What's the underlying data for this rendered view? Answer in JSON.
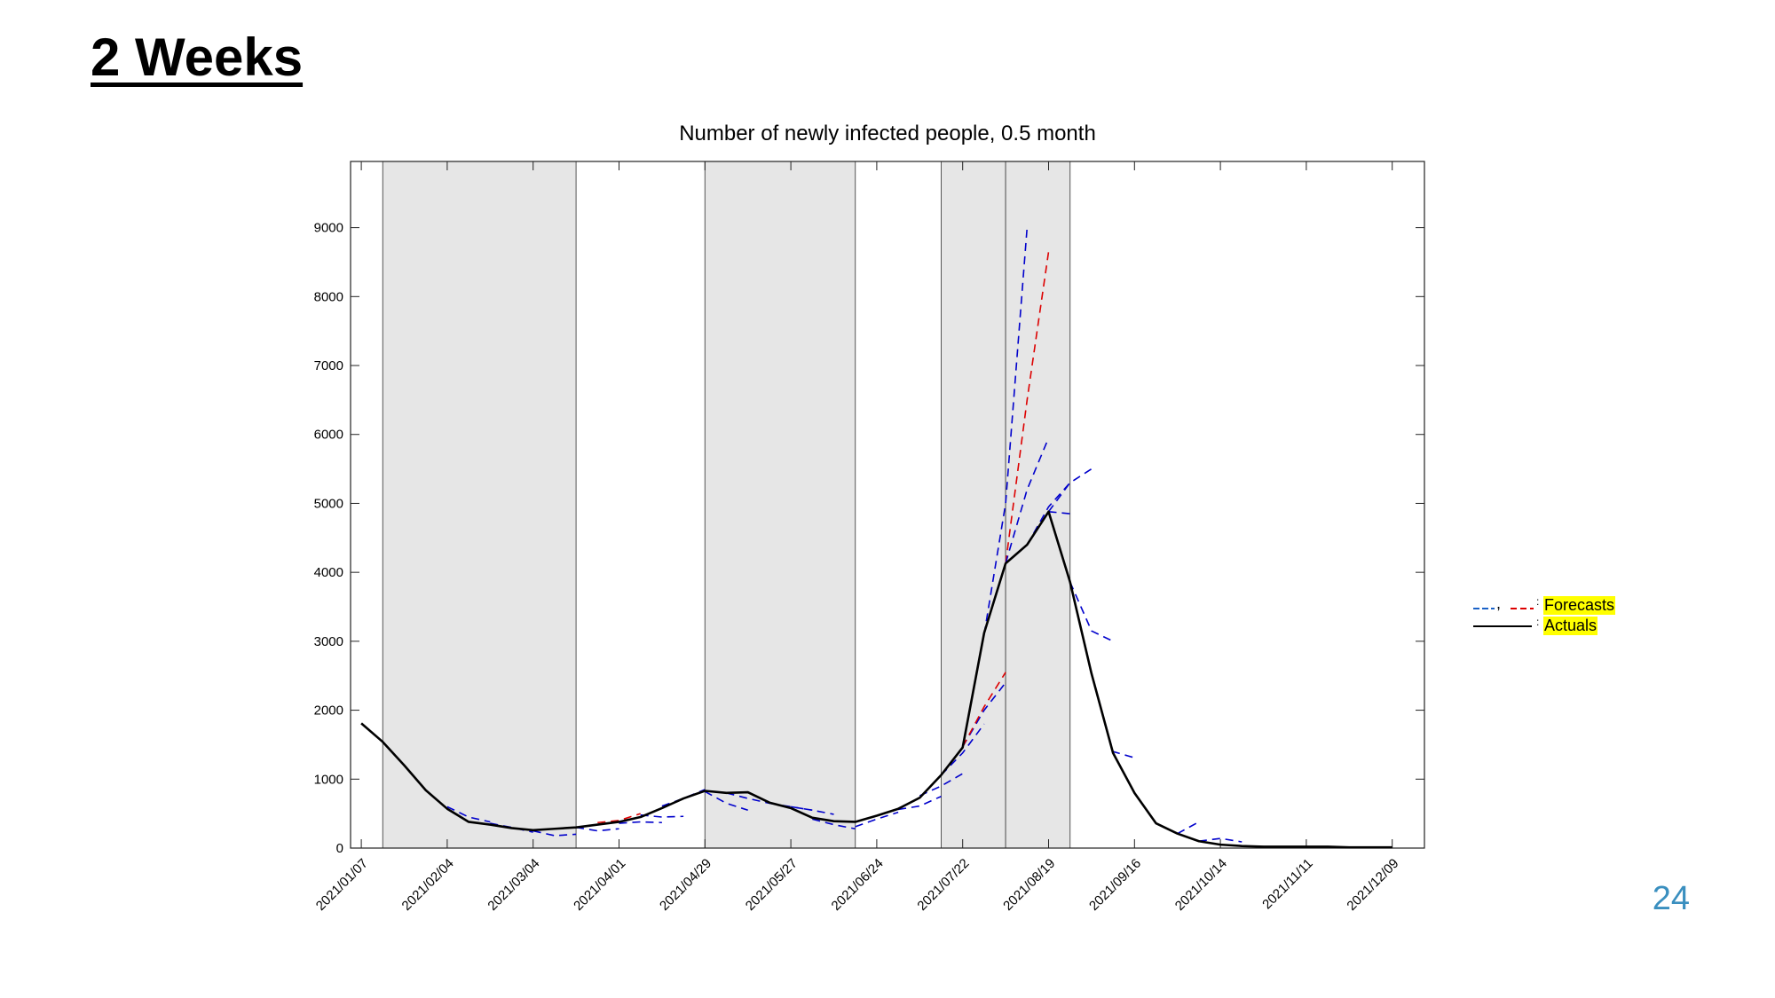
{
  "slide": {
    "title": "2 Weeks",
    "page_number": "24"
  },
  "chart_data": {
    "type": "line",
    "title": "Number of newly infected people, 0.5 month",
    "xlabel": "",
    "ylabel": "",
    "ylim": [
      0,
      9960
    ],
    "y_ticks": [
      0,
      1000,
      2000,
      3000,
      4000,
      5000,
      6000,
      7000,
      8000,
      9000
    ],
    "x_tick_labels": [
      "2021/01/07",
      "2021/02/04",
      "2021/03/04",
      "2021/04/01",
      "2021/04/29",
      "2021/05/27",
      "2021/06/24",
      "2021/07/22",
      "2021/08/19",
      "2021/09/16",
      "2021/10/14",
      "2021/11/11",
      "2021/12/09"
    ],
    "x_unit": "week",
    "x_range": [
      -0.5,
      49.5
    ],
    "shaded_periods": [
      [
        1,
        10
      ],
      [
        16,
        23
      ],
      [
        27,
        30
      ],
      [
        30,
        33
      ]
    ],
    "colors": {
      "actuals": "#000000",
      "forecast_blue": "#0000cc",
      "forecast_red": "#dd0000",
      "shade": "#e6e6e6",
      "legend_highlight": "#ffff00"
    },
    "series": [
      {
        "name": "Actuals",
        "style": "solid",
        "color": "#000000",
        "x": [
          0,
          1,
          2,
          3,
          4,
          5,
          6,
          7,
          8,
          9,
          10,
          11,
          12,
          13,
          14,
          15,
          16,
          17,
          18,
          19,
          20,
          21,
          22,
          23,
          24,
          25,
          26,
          27,
          28,
          29,
          30,
          31,
          32,
          33,
          34,
          35,
          36,
          37,
          38,
          39,
          40,
          41,
          42,
          43,
          44,
          45,
          46,
          47,
          48
        ],
        "y": [
          1810,
          1540,
          1200,
          840,
          570,
          380,
          340,
          290,
          260,
          280,
          300,
          340,
          380,
          450,
          580,
          720,
          830,
          800,
          810,
          660,
          580,
          440,
          390,
          380,
          470,
          570,
          730,
          1060,
          1460,
          3120,
          4130,
          4400,
          4880,
          3860,
          2530,
          1380,
          800,
          360,
          210,
          100,
          50,
          30,
          20,
          20,
          20,
          20,
          10,
          10,
          10
        ]
      }
    ],
    "forecasts": [
      {
        "color": "#0000cc",
        "x": [
          4,
          5,
          6
        ],
        "y": [
          600,
          450,
          380
        ]
      },
      {
        "color": "#0000cc",
        "x": [
          6,
          7,
          8
        ],
        "y": [
          360,
          300,
          230
        ]
      },
      {
        "color": "#0000cc",
        "x": [
          8,
          9,
          10
        ],
        "y": [
          250,
          180,
          200
        ]
      },
      {
        "color": "#0000cc",
        "x": [
          10,
          11,
          12
        ],
        "y": [
          300,
          250,
          280
        ]
      },
      {
        "color": "#0000cc",
        "x": [
          12,
          13,
          14
        ],
        "y": [
          360,
          380,
          370
        ]
      },
      {
        "color": "#0000cc",
        "x": [
          13,
          14,
          15
        ],
        "y": [
          480,
          450,
          460
        ]
      },
      {
        "color": "#dd0000",
        "x": [
          11,
          12,
          13
        ],
        "y": [
          370,
          400,
          500
        ]
      },
      {
        "color": "#0000cc",
        "x": [
          14,
          15,
          16
        ],
        "y": [
          610,
          720,
          850
        ]
      },
      {
        "color": "#0000cc",
        "x": [
          16,
          17,
          18
        ],
        "y": [
          820,
          650,
          550
        ]
      },
      {
        "color": "#0000cc",
        "x": [
          17,
          18,
          19
        ],
        "y": [
          800,
          720,
          650
        ]
      },
      {
        "color": "#0000cc",
        "x": [
          19,
          20,
          21
        ],
        "y": [
          650,
          600,
          550
        ]
      },
      {
        "color": "#0000cc",
        "x": [
          20,
          21,
          22
        ],
        "y": [
          600,
          550,
          490
        ]
      },
      {
        "color": "#0000cc",
        "x": [
          21,
          22,
          23
        ],
        "y": [
          420,
          340,
          280
        ]
      },
      {
        "color": "#0000cc",
        "x": [
          23,
          24,
          25
        ],
        "y": [
          310,
          420,
          520
        ]
      },
      {
        "color": "#0000cc",
        "x": [
          25,
          26,
          27
        ],
        "y": [
          560,
          610,
          750
        ]
      },
      {
        "color": "#0000cc",
        "x": [
          26,
          27,
          28
        ],
        "y": [
          760,
          900,
          1080
        ]
      },
      {
        "color": "#0000cc",
        "x": [
          27,
          28,
          29
        ],
        "y": [
          1060,
          1380,
          1800
        ]
      },
      {
        "color": "#0000cc",
        "x": [
          28,
          29,
          30
        ],
        "y": [
          1470,
          2000,
          2400
        ]
      },
      {
        "color": "#dd0000",
        "x": [
          28,
          29,
          30
        ],
        "y": [
          1470,
          2050,
          2550
        ]
      },
      {
        "color": "#0000cc",
        "x": [
          29,
          30,
          31
        ],
        "y": [
          3100,
          5000,
          9000
        ]
      },
      {
        "color": "#dd0000",
        "x": [
          30,
          31,
          32
        ],
        "y": [
          4130,
          6500,
          8650
        ]
      },
      {
        "color": "#0000cc",
        "x": [
          30,
          31,
          32
        ],
        "y": [
          4130,
          5200,
          5950
        ]
      },
      {
        "color": "#0000cc",
        "x": [
          31,
          32,
          33
        ],
        "y": [
          4400,
          4950,
          5300
        ]
      },
      {
        "color": "#0000cc",
        "x": [
          32,
          33,
          34
        ],
        "y": [
          4880,
          5300,
          5500
        ]
      },
      {
        "color": "#0000cc",
        "x": [
          32,
          33
        ],
        "y": [
          4880,
          4850
        ]
      },
      {
        "color": "#0000cc",
        "x": [
          33,
          34,
          35
        ],
        "y": [
          3860,
          3150,
          3000
        ]
      },
      {
        "color": "#0000cc",
        "x": [
          34,
          35,
          36
        ],
        "y": [
          2530,
          1400,
          1310
        ]
      },
      {
        "color": "#0000cc",
        "x": [
          38,
          39
        ],
        "y": [
          210,
          380
        ]
      },
      {
        "color": "#0000cc",
        "x": [
          39,
          40,
          41
        ],
        "y": [
          100,
          140,
          90
        ]
      }
    ]
  },
  "legend": {
    "forecast_separator": ",",
    "forecast_colon": ":",
    "actual_colon": ":",
    "forecast_label": "Forecasts",
    "actual_label": "Actuals"
  }
}
